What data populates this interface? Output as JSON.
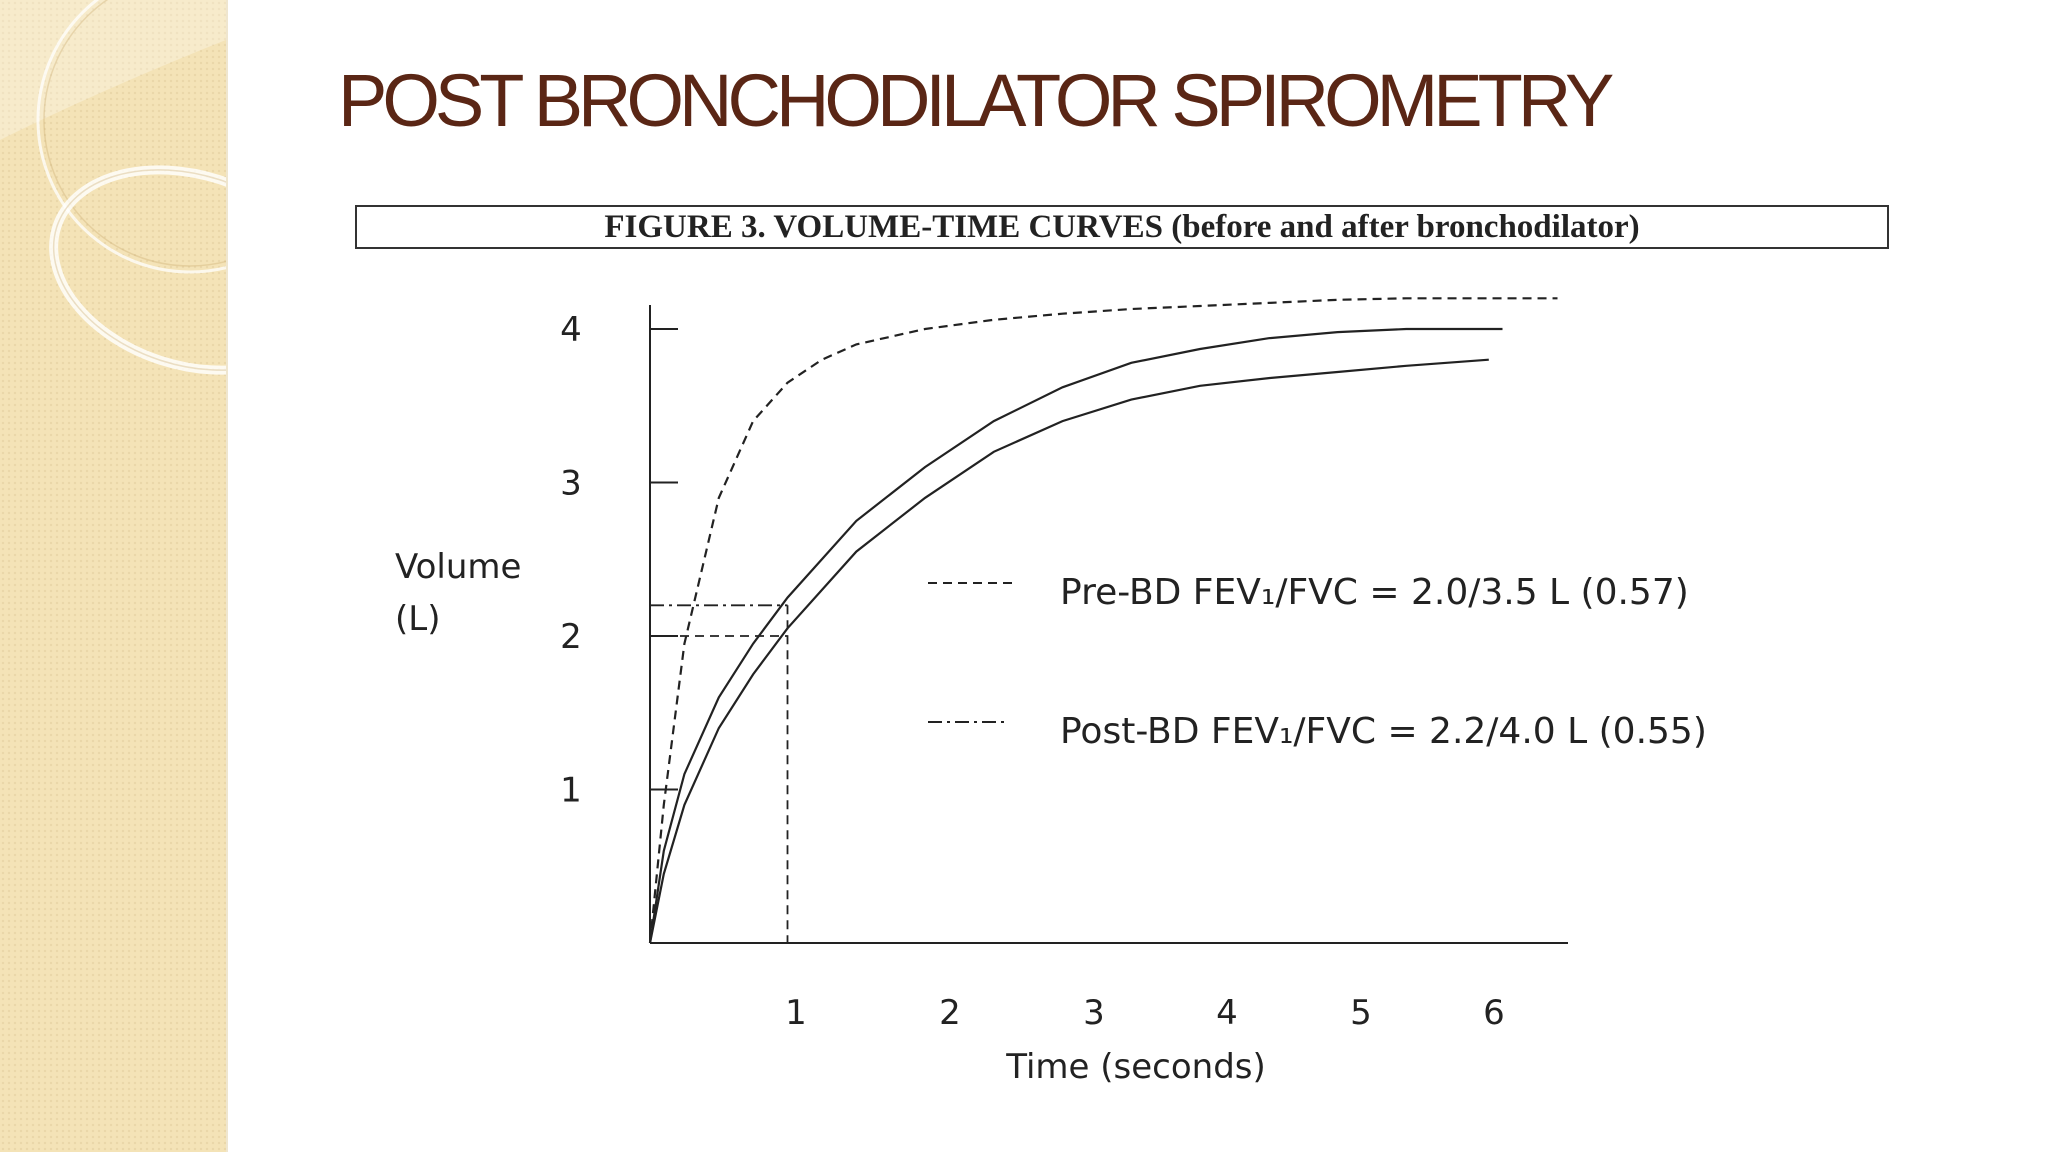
{
  "slide": {
    "title": "POST BRONCHODILATOR SPIROMETRY"
  },
  "colors": {
    "title": "#5a2615",
    "sidebar": "#f4e3b7",
    "ink": "#222222"
  },
  "chart_data": {
    "type": "line",
    "caption": "FIGURE 3.  VOLUME-TIME CURVES (before and after bronchodilator)",
    "xlabel": "Time (seconds)",
    "ylabel_lines": [
      "Volume",
      "(L)"
    ],
    "xlim": [
      0,
      6.9
    ],
    "ylim": [
      0,
      4.2
    ],
    "x_ticks": [
      1,
      2,
      3,
      4,
      5,
      6
    ],
    "y_ticks": [
      1,
      2,
      3,
      4
    ],
    "legend": [
      {
        "style": "dashed",
        "text": "Pre-BD FEV₁/FVC = 2.0/3.5 L (0.57)"
      },
      {
        "style": "dash-dot",
        "text": "Post-BD FEV₁/FVC = 2.2/4.0 L (0.55)"
      }
    ],
    "series": [
      {
        "style": "dashed",
        "x": [
          0,
          0.1,
          0.25,
          0.5,
          0.75,
          1,
          1.25,
          1.5,
          2,
          2.5,
          3,
          3.5,
          4,
          4.5,
          5,
          5.5,
          6,
          6.6
        ],
        "y": [
          0,
          0.9,
          1.95,
          2.9,
          3.4,
          3.65,
          3.8,
          3.9,
          4.0,
          4.06,
          4.1,
          4.13,
          4.15,
          4.17,
          4.19,
          4.2,
          4.2,
          4.2
        ]
      },
      {
        "style": "solid",
        "x": [
          0,
          0.1,
          0.25,
          0.5,
          0.75,
          1,
          1.5,
          2,
          2.5,
          3,
          3.5,
          4,
          4.5,
          5,
          5.5,
          6.2
        ],
        "y": [
          0,
          0.6,
          1.1,
          1.6,
          1.95,
          2.25,
          2.75,
          3.1,
          3.4,
          3.62,
          3.78,
          3.87,
          3.94,
          3.98,
          4.0,
          4.0
        ]
      },
      {
        "style": "solid",
        "x": [
          0,
          0.1,
          0.25,
          0.5,
          0.75,
          1,
          1.5,
          2,
          2.5,
          3,
          3.5,
          4,
          4.5,
          5,
          5.5,
          6.1
        ],
        "y": [
          0,
          0.45,
          0.9,
          1.4,
          1.75,
          2.05,
          2.55,
          2.9,
          3.2,
          3.4,
          3.54,
          3.63,
          3.68,
          3.72,
          3.76,
          3.8
        ]
      }
    ],
    "reference_lines": [
      {
        "style": "dash-dot",
        "x": 1,
        "y": 2.2
      },
      {
        "style": "dashed",
        "x": 1,
        "y": 2.0
      }
    ]
  }
}
